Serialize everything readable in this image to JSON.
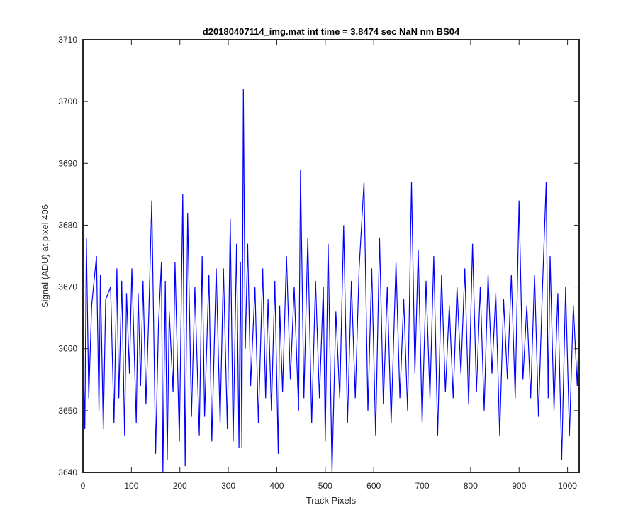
{
  "chart_data": {
    "type": "line",
    "title": "d20180407114_img.mat int time = 3.8474 sec  NaN nm BS04",
    "xlabel": "Track Pixels",
    "ylabel": "Signal (ADU) at pixel 406",
    "xlim": [
      0,
      1024
    ],
    "ylim": [
      3640,
      3710
    ],
    "xticks": [
      0,
      100,
      200,
      300,
      400,
      500,
      600,
      700,
      800,
      900,
      1000
    ],
    "yticks": [
      3640,
      3650,
      3660,
      3670,
      3680,
      3690,
      3700,
      3710
    ],
    "grid": false,
    "line_color": "#0000ff",
    "series": [
      {
        "x": [
          0,
          4,
          7,
          12,
          18,
          28,
          33,
          36,
          42,
          47,
          57,
          64,
          70,
          74,
          80,
          86,
          90,
          96,
          101,
          110,
          114,
          119,
          124,
          130,
          136,
          142,
          150,
          156,
          162,
          165,
          170,
          174,
          178,
          186,
          190,
          199,
          206,
          211,
          216,
          224,
          231,
          240,
          246,
          251,
          260,
          266,
          275,
          283,
          290,
          298,
          304,
          310,
          317,
          322,
          325,
          328,
          331,
          335,
          340,
          346,
          355,
          362,
          371,
          377,
          382,
          389,
          396,
          403,
          406,
          412,
          420,
          428,
          436,
          445,
          449,
          456,
          464,
          472,
          480,
          488,
          496,
          500,
          506,
          514,
          522,
          530,
          538,
          546,
          554,
          562,
          570,
          580,
          588,
          596,
          604,
          612,
          620,
          628,
          636,
          646,
          654,
          662,
          670,
          678,
          685,
          692,
          700,
          708,
          716,
          724,
          732,
          740,
          748,
          756,
          764,
          772,
          780,
          788,
          796,
          804,
          812,
          820,
          828,
          836,
          844,
          852,
          860,
          868,
          876,
          884,
          892,
          900,
          908,
          916,
          924,
          932,
          940,
          948,
          956,
          960,
          964,
          972,
          980,
          988,
          996,
          1004,
          1012,
          1020,
          1024
        ],
        "y": [
          3661,
          3647,
          3678,
          3652,
          3667,
          3675,
          3650,
          3672,
          3647,
          3668,
          3670,
          3648,
          3673,
          3652,
          3671,
          3646,
          3669,
          3656,
          3673,
          3648,
          3669,
          3654,
          3671,
          3651,
          3666,
          3684,
          3643,
          3664,
          3674,
          3640,
          3671,
          3642,
          3666,
          3653,
          3674,
          3645,
          3685,
          3641,
          3682,
          3649,
          3670,
          3646,
          3675,
          3649,
          3672,
          3645,
          3673,
          3648,
          3673,
          3647,
          3681,
          3645,
          3677,
          3644,
          3674,
          3644,
          3702,
          3660,
          3677,
          3654,
          3670,
          3648,
          3673,
          3652,
          3668,
          3650,
          3671,
          3643,
          3667,
          3653,
          3675,
          3655,
          3670,
          3650,
          3689,
          3652,
          3678,
          3648,
          3671,
          3652,
          3670,
          3645,
          3677,
          3640,
          3666,
          3652,
          3680,
          3648,
          3671,
          3652,
          3673,
          3687,
          3650,
          3673,
          3646,
          3678,
          3651,
          3670,
          3648,
          3674,
          3652,
          3668,
          3650,
          3687,
          3656,
          3676,
          3648,
          3671,
          3652,
          3675,
          3646,
          3672,
          3653,
          3667,
          3652,
          3670,
          3656,
          3673,
          3651,
          3677,
          3653,
          3670,
          3650,
          3672,
          3656,
          3669,
          3646,
          3668,
          3655,
          3672,
          3652,
          3684,
          3655,
          3667,
          3652,
          3672,
          3649,
          3669,
          3687,
          3652,
          3675,
          3650,
          3669,
          3642,
          3670,
          3646,
          3667,
          3654,
          3664
        ]
      }
    ]
  }
}
